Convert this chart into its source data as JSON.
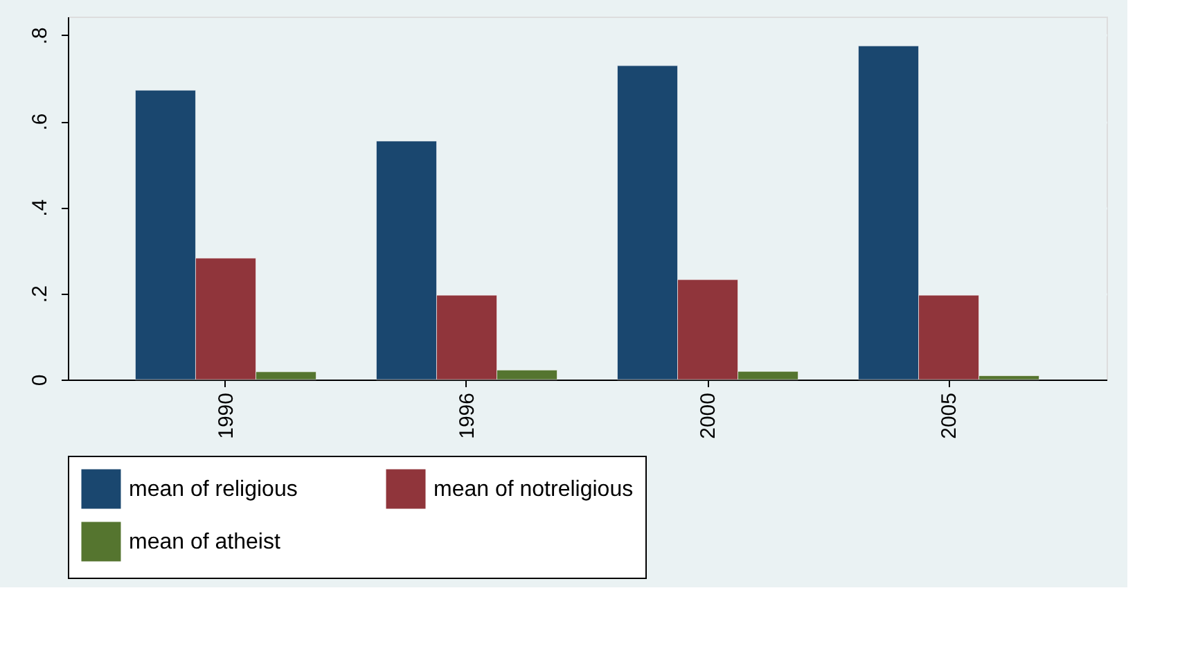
{
  "chart_data": {
    "type": "bar",
    "categories": [
      "1990",
      "1996",
      "2000",
      "2005"
    ],
    "series": [
      {
        "name": "mean of religious",
        "color": "#1a476f",
        "values": [
          0.672,
          0.554,
          0.729,
          0.775
        ]
      },
      {
        "name": "mean of notreligious",
        "color": "#90353b",
        "values": [
          0.282,
          0.196,
          0.232,
          0.196
        ]
      },
      {
        "name": "mean of atheist",
        "color": "#55752f",
        "values": [
          0.018,
          0.022,
          0.019,
          0.009
        ]
      }
    ],
    "ylim": [
      0,
      0.843
    ],
    "yticks": [
      {
        "value": 0,
        "label": "0"
      },
      {
        "value": 0.2,
        "label": ".2"
      },
      {
        "value": 0.4,
        "label": ".4"
      },
      {
        "value": 0.6,
        "label": ".6"
      },
      {
        "value": 0.8,
        "label": ".8"
      }
    ],
    "grid": "y",
    "legend": "bottom"
  }
}
